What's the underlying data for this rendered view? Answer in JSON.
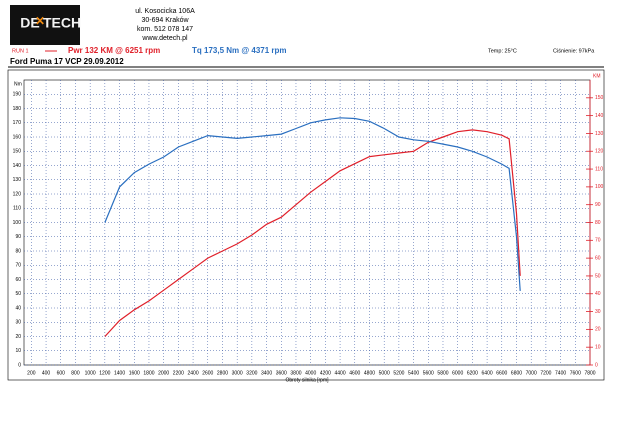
{
  "header": {
    "logo_left": "DE",
    "logo_right": "TECH",
    "address": [
      "ul. Kosocicka 106A",
      "30-694 Kraków",
      "kom. 512 078 147",
      "www.detech.pl"
    ],
    "run": "RUN 1",
    "temp": "Temp: 25°C",
    "pressure": "Ciśnienie: 97kPa"
  },
  "chart_data": {
    "type": "line",
    "title": "Ford Puma 17 VCP 29.09.2012",
    "x_label": "Obroty silnika [rpm]",
    "y_label": "Nm",
    "y2_label": "KM",
    "x": [
      1200,
      1400,
      1600,
      1800,
      2000,
      2200,
      2400,
      2600,
      2800,
      3000,
      3200,
      3400,
      3600,
      3800,
      4000,
      4200,
      4400,
      4600,
      4800,
      5000,
      5200,
      5400,
      5600,
      5800,
      6000,
      6200,
      6400,
      6600,
      6700,
      6800,
      6850
    ],
    "series": [
      {
        "name": "Pwr 132 KM @ 6251 rpm",
        "color": "#e0202a",
        "axis": "y2",
        "values": [
          16,
          25,
          31,
          36,
          42,
          48,
          54,
          60,
          64,
          68,
          73,
          79,
          83,
          90,
          97,
          103,
          109,
          113,
          117,
          118,
          119,
          120,
          125,
          128,
          131,
          132,
          131,
          129,
          127,
          85,
          50
        ]
      },
      {
        "name": "Tq 173,5 Nm @ 4371 rpm",
        "color": "#2a6fc0",
        "values": [
          100,
          125,
          135,
          141,
          146,
          153,
          157,
          161,
          160,
          159,
          160,
          161,
          162,
          166,
          170,
          172,
          173.5,
          173,
          171,
          166,
          160,
          158,
          157,
          155,
          153,
          150,
          146,
          141,
          138,
          90,
          52
        ]
      }
    ],
    "xlim": [
      100,
      7800
    ],
    "xticks": [
      200,
      400,
      600,
      800,
      1000,
      1200,
      1400,
      1600,
      1800,
      2000,
      2200,
      2400,
      2600,
      2800,
      3000,
      3200,
      3400,
      3600,
      3800,
      4000,
      4200,
      4400,
      4600,
      4800,
      5000,
      5200,
      5400,
      5600,
      5800,
      6000,
      6200,
      6400,
      6600,
      6800,
      7000,
      7200,
      7400,
      7600,
      7800
    ],
    "ylim": [
      0,
      200
    ],
    "yticks": [
      0,
      10,
      20,
      30,
      40,
      50,
      60,
      70,
      80,
      90,
      100,
      110,
      120,
      130,
      140,
      150,
      160,
      170,
      180,
      190
    ],
    "y2lim": [
      0,
      160
    ],
    "y2ticks": [
      0,
      10,
      20,
      30,
      40,
      50,
      60,
      70,
      80,
      90,
      100,
      110,
      120,
      130,
      140,
      150
    ],
    "grid": true
  }
}
